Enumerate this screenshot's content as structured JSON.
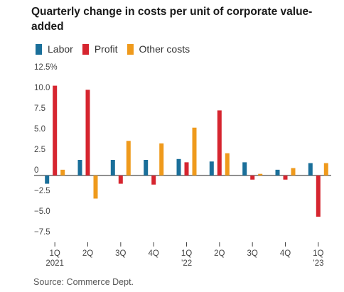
{
  "chart_data": {
    "type": "bar",
    "title": "Quarterly change in costs per unit of corporate value-added",
    "categories": [
      {
        "top": "1Q",
        "bottom": "2021"
      },
      {
        "top": "2Q",
        "bottom": ""
      },
      {
        "top": "3Q",
        "bottom": ""
      },
      {
        "top": "4Q",
        "bottom": ""
      },
      {
        "top": "1Q",
        "bottom": "’22"
      },
      {
        "top": "2Q",
        "bottom": ""
      },
      {
        "top": "3Q",
        "bottom": ""
      },
      {
        "top": "4Q",
        "bottom": ""
      },
      {
        "top": "1Q",
        "bottom": "’23"
      }
    ],
    "series": [
      {
        "name": "Labor",
        "color": "#1a6f9a",
        "values": [
          -1.0,
          1.9,
          1.9,
          1.9,
          2.0,
          1.7,
          1.6,
          0.7,
          1.5
        ]
      },
      {
        "name": "Profit",
        "color": "#d6252f",
        "values": [
          10.9,
          10.4,
          -1.0,
          -1.1,
          1.6,
          7.9,
          -0.5,
          -0.5,
          -5.0
        ]
      },
      {
        "name": "Other costs",
        "color": "#ef9a1c",
        "values": [
          0.7,
          -2.8,
          4.2,
          3.9,
          5.8,
          2.7,
          0.2,
          0.9,
          1.5
        ]
      }
    ],
    "yticks": [
      12.5,
      10.0,
      7.5,
      5.0,
      2.5,
      0,
      -2.5,
      -5.0,
      -7.5
    ],
    "ytick_labels": [
      "12.5%",
      "10.0",
      "7.5",
      "5.0",
      "2.5",
      "0",
      "−2.5",
      "−5.0",
      "−7.5"
    ],
    "ylim": [
      -7.5,
      12.5
    ],
    "grid": false,
    "legend_position": "top-left"
  },
  "source": "Source: Commerce Dept."
}
